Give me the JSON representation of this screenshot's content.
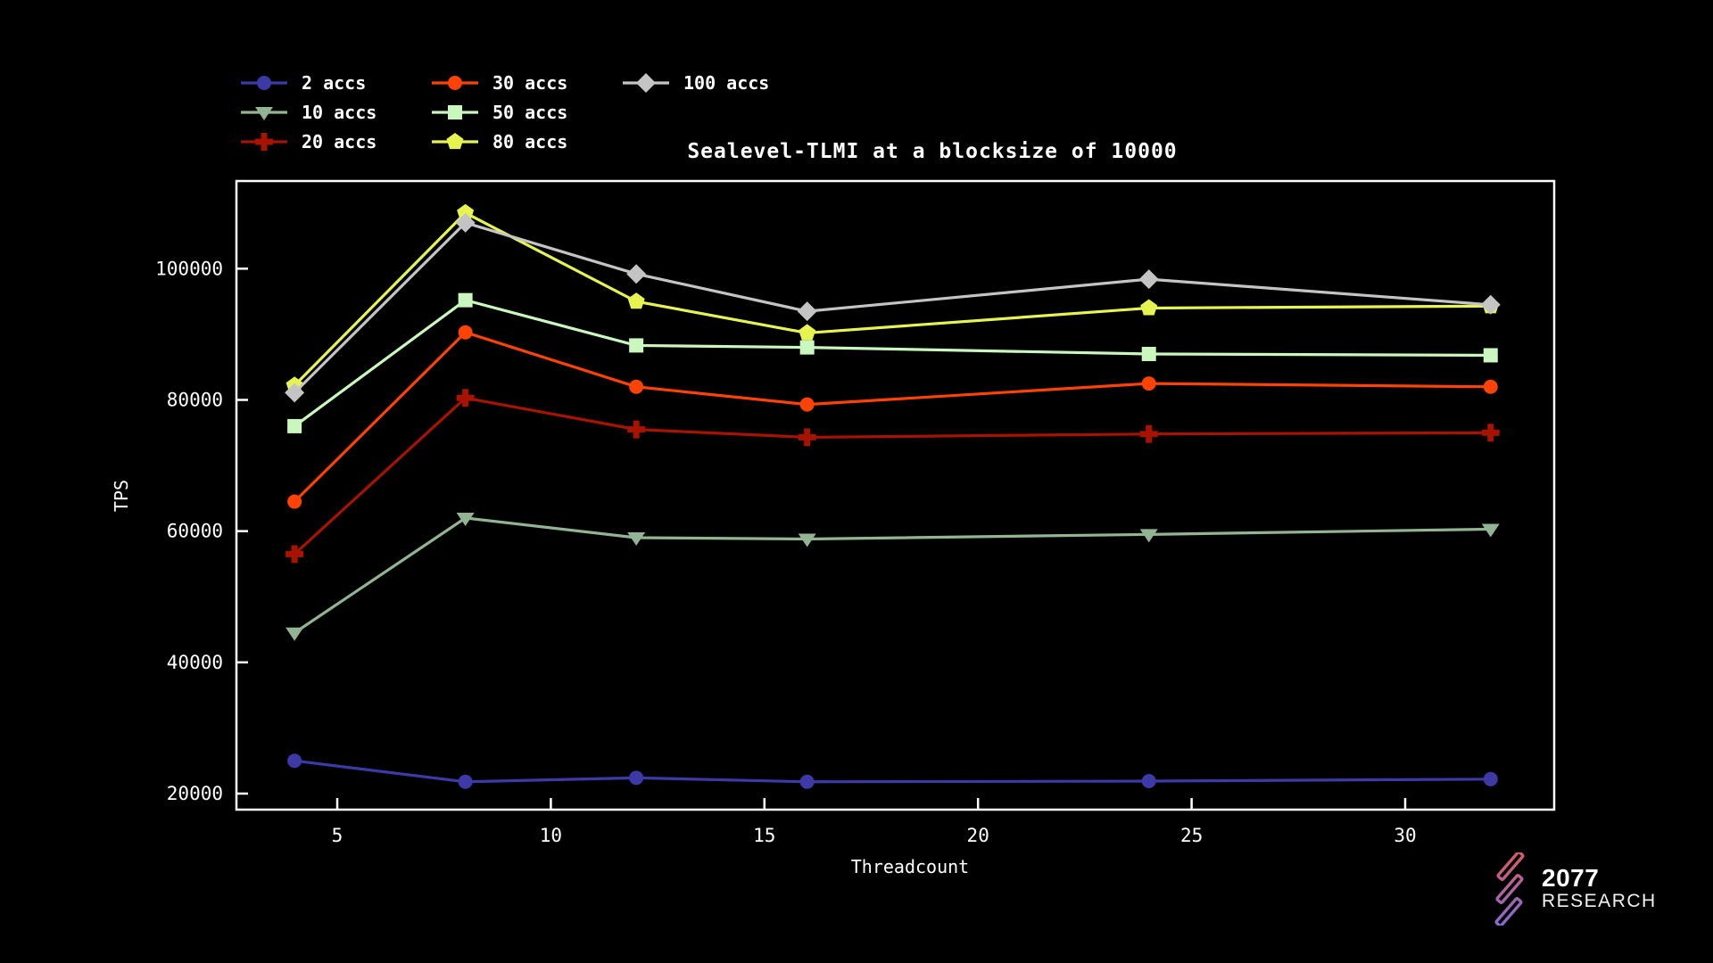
{
  "page": {
    "background": "#000000",
    "text_color": "#ffffff"
  },
  "chart_data": {
    "type": "line",
    "title": "Sealevel-TLMI at a blocksize of 10000",
    "xlabel": "Threadcount",
    "ylabel": "TPS",
    "x": [
      4,
      8,
      12,
      16,
      24,
      32
    ],
    "xticks": [
      5,
      10,
      15,
      20,
      25,
      30
    ],
    "yticks": [
      20000,
      40000,
      60000,
      80000,
      100000
    ],
    "xlim": [
      2.6,
      33.5
    ],
    "ylim": [
      17500,
      113300
    ],
    "grid": false,
    "legend_position": "top-left",
    "series": [
      {
        "name": "2 accs",
        "marker": "circle",
        "color": "#3d3aa8",
        "values": [
          25000,
          21800,
          22400,
          21800,
          21900,
          22200
        ]
      },
      {
        "name": "10 accs",
        "marker": "triangle-down",
        "color": "#92b492",
        "values": [
          44500,
          62000,
          59000,
          58800,
          59500,
          60300
        ]
      },
      {
        "name": "20 accs",
        "marker": "plus",
        "color": "#a81300",
        "values": [
          56500,
          80300,
          75500,
          74300,
          74800,
          75000
        ]
      },
      {
        "name": "30 accs",
        "marker": "circle",
        "color": "#fc4205",
        "values": [
          64500,
          90300,
          82000,
          79300,
          82500,
          82000
        ]
      },
      {
        "name": "50 accs",
        "marker": "square",
        "color": "#c9f7bd",
        "values": [
          76000,
          95200,
          88300,
          88000,
          87000,
          86800
        ]
      },
      {
        "name": "80 accs",
        "marker": "pentagon",
        "color": "#e7f450",
        "values": [
          82200,
          108500,
          95000,
          90200,
          94000,
          94300
        ]
      },
      {
        "name": "100 accs",
        "marker": "diamond",
        "color": "#c4c4c4",
        "values": [
          81100,
          107000,
          99200,
          93500,
          98400,
          94500
        ]
      }
    ],
    "legend_columns": [
      [
        "2 accs",
        "10 accs",
        "20 accs"
      ],
      [
        "30 accs",
        "50 accs",
        "80 accs"
      ],
      [
        "100 accs"
      ]
    ]
  },
  "logo": {
    "line1": "2077",
    "line2": "RESEARCH",
    "gradient_top_right": "#e0574d",
    "gradient_bottom_left": "#6f6fe0"
  }
}
